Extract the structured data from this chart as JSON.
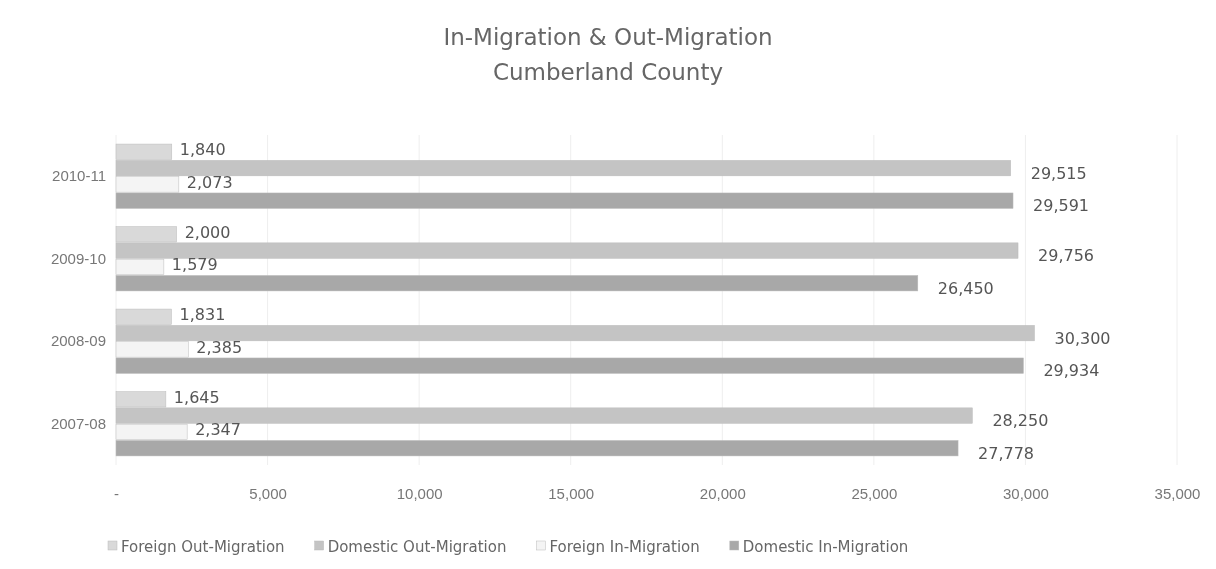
{
  "chart_data": {
    "type": "bar",
    "orientation": "horizontal",
    "title": "In-Migration & Out-Migration\nCumberland County",
    "categories": [
      "2010-11",
      "2009-10",
      "2008-09",
      "2007-08"
    ],
    "series": [
      {
        "name": "Foreign Out-Migration",
        "color": "#d9d9d9",
        "values": [
          1840,
          2000,
          1831,
          1645
        ],
        "value_labels": [
          "1,840",
          "2,000",
          "1,831",
          "1,645"
        ]
      },
      {
        "name": "Domestic Out-Migration",
        "color": "#c4c4c4",
        "values": [
          29515,
          29756,
          30300,
          28250
        ],
        "value_labels": [
          "29,515",
          "29,756",
          "30,300",
          "28,250"
        ]
      },
      {
        "name": "Foreign In-Migration",
        "color": "#f4f4f4",
        "values": [
          2073,
          1579,
          2385,
          2347
        ],
        "value_labels": [
          "2,073",
          "1,579",
          "2,385",
          "2,347"
        ]
      },
      {
        "name": "Domestic In-Migration",
        "color": "#a8a8a8",
        "values": [
          29591,
          26450,
          29934,
          27778
        ],
        "value_labels": [
          "29,591",
          "26,450",
          "29,934",
          "27,778"
        ]
      }
    ],
    "xlim": [
      0,
      35000
    ],
    "xticks": [
      {
        "value": 0,
        "label": "-"
      },
      {
        "value": 5000,
        "label": "5,000"
      },
      {
        "value": 10000,
        "label": "10,000"
      },
      {
        "value": 15000,
        "label": "15,000"
      },
      {
        "value": 20000,
        "label": "20,000"
      },
      {
        "value": 25000,
        "label": "25,000"
      },
      {
        "value": 30000,
        "label": "30,000"
      },
      {
        "value": 35000,
        "label": "35,000"
      }
    ],
    "grid": "x",
    "legend": "bottom"
  }
}
